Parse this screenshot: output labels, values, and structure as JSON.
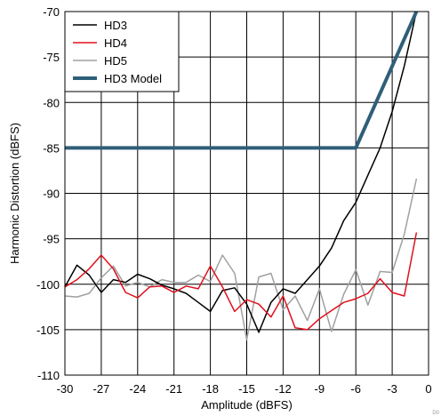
{
  "chart_data": {
    "type": "line",
    "title": "",
    "xlabel": "Amplitude (dBFS)",
    "ylabel": "Harmonic Distortion (dBFS)",
    "xlim": [
      -30,
      0
    ],
    "ylim": [
      -110,
      -70
    ],
    "x_ticks": [
      -30,
      -27,
      -24,
      -21,
      -18,
      -15,
      -12,
      -9,
      -6,
      -3,
      0
    ],
    "y_ticks": [
      -70,
      -75,
      -80,
      -85,
      -90,
      -95,
      -100,
      -105,
      -110
    ],
    "grid": true,
    "legend_position": "top-left",
    "corner_mark": "D0",
    "series": [
      {
        "name": "HD3",
        "color": "#000000",
        "x": [
          -30,
          -29,
          -28,
          -27,
          -26,
          -25,
          -24,
          -23,
          -22,
          -21,
          -20,
          -19,
          -18,
          -17,
          -16,
          -15,
          -14,
          -13,
          -12,
          -11,
          -10,
          -9,
          -8,
          -7,
          -6,
          -5,
          -4,
          -3,
          -2,
          -1
        ],
        "y": [
          -100.3,
          -97.9,
          -99,
          -100.9,
          -99.5,
          -99.8,
          -98.9,
          -99.4,
          -100.1,
          -100.5,
          -101,
          -102,
          -103,
          -100.7,
          -100.4,
          -102.2,
          -105.3,
          -102,
          -100.5,
          -101,
          -99.5,
          -98,
          -96,
          -93,
          -91,
          -88,
          -85,
          -81,
          -76,
          -70
        ]
      },
      {
        "name": "HD4",
        "color": "#e0101c",
        "x": [
          -30,
          -29,
          -28,
          -27,
          -26,
          -25,
          -24,
          -23,
          -22,
          -21,
          -20,
          -19,
          -18,
          -17,
          -16,
          -15,
          -14,
          -13,
          -12,
          -11,
          -10,
          -9,
          -8,
          -7,
          -6,
          -5,
          -4,
          -3,
          -2,
          -1
        ],
        "y": [
          -100.3,
          -99.5,
          -98.3,
          -96.8,
          -98.3,
          -100.9,
          -101.5,
          -100.3,
          -100.2,
          -100.9,
          -100.2,
          -100.5,
          -98,
          -100.3,
          -103,
          -101.7,
          -102.2,
          -103.6,
          -101.3,
          -104.8,
          -105,
          -103.8,
          -102.9,
          -102,
          -101.6,
          -101,
          -99.4,
          -100.9,
          -101.3,
          -94.3
        ]
      },
      {
        "name": "HD5",
        "color": "#a0a0a0",
        "x": [
          -30,
          -29,
          -28,
          -27,
          -26,
          -25,
          -24,
          -23,
          -22,
          -21,
          -20,
          -19,
          -18,
          -17,
          -16,
          -15,
          -14,
          -13,
          -12,
          -11,
          -10,
          -9,
          -8,
          -7,
          -6,
          -5,
          -4,
          -3,
          -2,
          -1
        ],
        "y": [
          -101.3,
          -101.4,
          -101,
          -99.3,
          -98,
          -100.2,
          -99.8,
          -100.3,
          -99.5,
          -99.8,
          -99.8,
          -99,
          -99.7,
          -96.8,
          -98.8,
          -106.1,
          -99.2,
          -98.8,
          -102.8,
          -101.3,
          -104,
          -100.5,
          -105.2,
          -101.1,
          -98.4,
          -102.3,
          -98.6,
          -98.7,
          -94.5,
          -88.4
        ]
      },
      {
        "name": "HD3 Model",
        "color": "#2f5f78",
        "x": [
          -30,
          -6,
          -1
        ],
        "y": [
          -85,
          -85,
          -70
        ]
      }
    ]
  }
}
